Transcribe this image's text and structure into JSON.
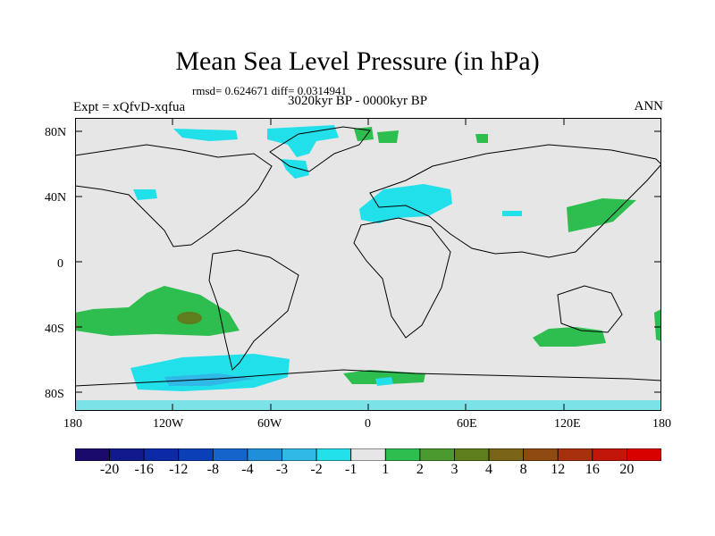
{
  "title": "Mean Sea Level Pressure (in hPa)",
  "stats": "rmsd= 0.624671 diff= 0.0314941",
  "period": "3020kyr BP - 0000kyr BP",
  "experiment": "Expt = xQfvD-xqfua",
  "season": "ANN",
  "lat_labels": [
    "80N",
    "40N",
    "0",
    "40S",
    "80S"
  ],
  "lon_labels": [
    "180",
    "120W",
    "60W",
    "0",
    "60E",
    "120E",
    "180"
  ],
  "colorbar": {
    "labels": [
      "-20",
      "-16",
      "-12",
      "-8",
      "-4",
      "-3",
      "-2",
      "-1",
      "1",
      "2",
      "3",
      "4",
      "8",
      "12",
      "16",
      "20"
    ],
    "colors": [
      "#1a0a6b",
      "#101a8c",
      "#0d2aa6",
      "#0b3fb8",
      "#1464cc",
      "#1f8fd9",
      "#30b8e6",
      "#22e0ea",
      "#e6e6e6",
      "#2ebd4f",
      "#4a9a2e",
      "#5e7d1c",
      "#7a6418",
      "#8f4a12",
      "#a8300e",
      "#c2160a",
      "#d90000"
    ]
  },
  "colors": {
    "background": "#e6e6e6",
    "cyan": "#22e0ea",
    "light_blue": "#30b8e6",
    "green": "#2ebd4f",
    "olive": "#5e7d1c",
    "dark_blue": "#1464cc"
  }
}
